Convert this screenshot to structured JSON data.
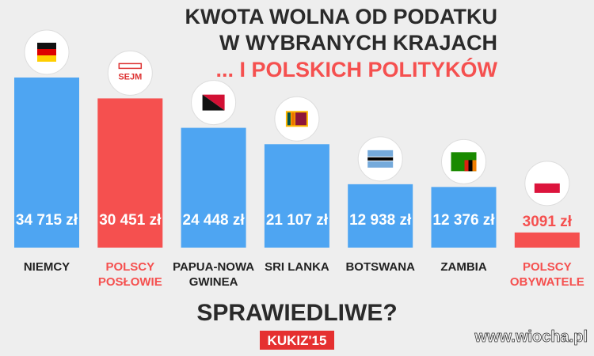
{
  "chart_data": {
    "type": "bar",
    "title": [
      "KWOTA WOLNA OD PODATKU",
      "W WYBRANYCH KRAJACH"
    ],
    "subtitle": "... I POLSKICH POLITYKÓW",
    "categories": [
      [
        "NIEMCY"
      ],
      [
        "POLSCY",
        "POSŁOWIE"
      ],
      [
        "PAPUA-NOWA",
        "GWINEA"
      ],
      [
        "SRI LANKA"
      ],
      [
        "BOTSWANA"
      ],
      [
        "ZAMBIA"
      ],
      [
        "POLSCY",
        "OBYWATELE"
      ]
    ],
    "values": [
      34715,
      30451,
      24448,
      21107,
      12938,
      12376,
      3091
    ],
    "value_labels": [
      "34 715 zł",
      "30 451 zł",
      "24 448 zł",
      "21 107 zł",
      "12 938 zł",
      "12 376 zł",
      "3091 zł"
    ],
    "colors": [
      "#4ea5f2",
      "#f5504f",
      "#4ea5f2",
      "#4ea5f2",
      "#4ea5f2",
      "#4ea5f2",
      "#f5504f"
    ],
    "label_colors": [
      "#222222",
      "#f5504f",
      "#222222",
      "#222222",
      "#222222",
      "#222222",
      "#f5504f"
    ],
    "question": "SPRAWIEDLIWE?",
    "emblem": "SEJM",
    "logo": "KUKIZ'15",
    "watermark": "www.wiocha.pl"
  }
}
